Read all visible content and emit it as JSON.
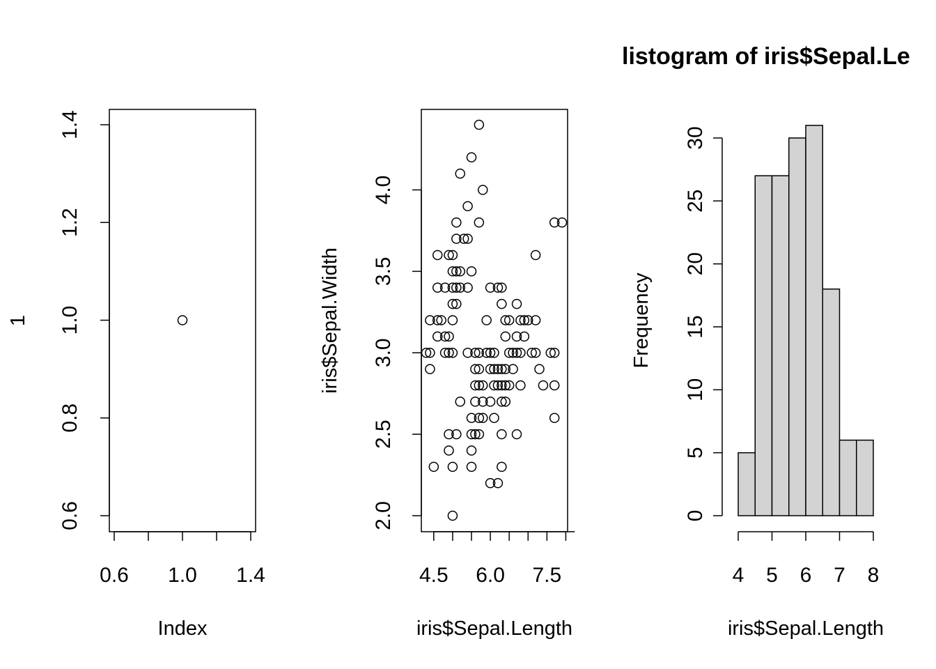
{
  "chart_data": [
    {
      "type": "scatter",
      "title": "",
      "xlabel": "Index",
      "ylabel": "1",
      "xlim": [
        0.6,
        1.4
      ],
      "ylim": [
        0.6,
        1.4
      ],
      "xticks": [
        "0.6",
        "1.0",
        "1.4"
      ],
      "yticks": [
        "0.6",
        "0.8",
        "1.0",
        "1.2",
        "1.4"
      ],
      "points": [
        [
          1.0,
          1.0
        ]
      ],
      "grid": false
    },
    {
      "type": "scatter",
      "title": "",
      "xlabel": "iris$Sepal.Length",
      "ylabel": "iris$Sepal.Width",
      "xlim": [
        4.3,
        7.9
      ],
      "ylim": [
        2.0,
        4.4
      ],
      "xticks": [
        "4.5",
        "6.0",
        "7.5"
      ],
      "yticks": [
        "2.0",
        "2.5",
        "3.0",
        "3.5",
        "4.0"
      ],
      "grid": false,
      "points": [
        [
          4.3,
          3.0
        ],
        [
          4.4,
          3.0
        ],
        [
          4.4,
          2.9
        ],
        [
          4.4,
          3.2
        ],
        [
          4.5,
          2.3
        ],
        [
          4.6,
          3.1
        ],
        [
          4.6,
          3.4
        ],
        [
          4.6,
          3.6
        ],
        [
          4.6,
          3.2
        ],
        [
          4.7,
          3.2
        ],
        [
          4.8,
          3.4
        ],
        [
          4.8,
          3.0
        ],
        [
          4.8,
          3.1
        ],
        [
          4.9,
          3.0
        ],
        [
          4.9,
          3.1
        ],
        [
          4.9,
          3.6
        ],
        [
          4.9,
          2.4
        ],
        [
          4.9,
          2.5
        ],
        [
          5.0,
          3.6
        ],
        [
          5.0,
          3.4
        ],
        [
          5.0,
          3.0
        ],
        [
          5.0,
          3.3
        ],
        [
          5.0,
          3.5
        ],
        [
          5.0,
          3.2
        ],
        [
          5.0,
          2.0
        ],
        [
          5.0,
          2.3
        ],
        [
          5.1,
          3.5
        ],
        [
          5.1,
          3.8
        ],
        [
          5.1,
          3.7
        ],
        [
          5.1,
          3.3
        ],
        [
          5.1,
          3.4
        ],
        [
          5.1,
          2.5
        ],
        [
          5.2,
          3.5
        ],
        [
          5.2,
          3.4
        ],
        [
          5.2,
          4.1
        ],
        [
          5.2,
          2.7
        ],
        [
          5.3,
          3.7
        ],
        [
          5.4,
          3.9
        ],
        [
          5.4,
          3.7
        ],
        [
          5.4,
          3.4
        ],
        [
          5.4,
          3.0
        ],
        [
          5.5,
          4.2
        ],
        [
          5.5,
          3.5
        ],
        [
          5.5,
          2.3
        ],
        [
          5.5,
          2.4
        ],
        [
          5.5,
          2.6
        ],
        [
          5.5,
          2.5
        ],
        [
          5.6,
          2.9
        ],
        [
          5.6,
          3.0
        ],
        [
          5.6,
          2.5
        ],
        [
          5.6,
          2.7
        ],
        [
          5.6,
          2.8
        ],
        [
          5.7,
          4.4
        ],
        [
          5.7,
          3.8
        ],
        [
          5.7,
          2.8
        ],
        [
          5.7,
          2.6
        ],
        [
          5.7,
          2.9
        ],
        [
          5.7,
          2.5
        ],
        [
          5.7,
          3.0
        ],
        [
          5.8,
          4.0
        ],
        [
          5.8,
          2.7
        ],
        [
          5.8,
          2.6
        ],
        [
          5.8,
          2.8
        ],
        [
          5.9,
          3.0
        ],
        [
          5.9,
          3.2
        ],
        [
          6.0,
          2.2
        ],
        [
          6.0,
          2.9
        ],
        [
          6.0,
          2.7
        ],
        [
          6.0,
          3.4
        ],
        [
          6.0,
          3.0
        ],
        [
          6.1,
          2.9
        ],
        [
          6.1,
          2.8
        ],
        [
          6.1,
          2.6
        ],
        [
          6.1,
          3.0
        ],
        [
          6.2,
          2.2
        ],
        [
          6.2,
          2.9
        ],
        [
          6.2,
          2.8
        ],
        [
          6.2,
          3.4
        ],
        [
          6.3,
          3.3
        ],
        [
          6.3,
          2.3
        ],
        [
          6.3,
          2.5
        ],
        [
          6.3,
          2.9
        ],
        [
          6.3,
          2.7
        ],
        [
          6.3,
          2.8
        ],
        [
          6.3,
          3.4
        ],
        [
          6.4,
          3.2
        ],
        [
          6.4,
          2.9
        ],
        [
          6.4,
          2.7
        ],
        [
          6.4,
          2.8
        ],
        [
          6.4,
          3.1
        ],
        [
          6.5,
          2.8
        ],
        [
          6.5,
          3.0
        ],
        [
          6.5,
          3.2
        ],
        [
          6.6,
          2.9
        ],
        [
          6.6,
          3.0
        ],
        [
          6.7,
          3.1
        ],
        [
          6.7,
          3.0
        ],
        [
          6.7,
          2.5
        ],
        [
          6.7,
          3.3
        ],
        [
          6.8,
          2.8
        ],
        [
          6.8,
          3.0
        ],
        [
          6.8,
          3.2
        ],
        [
          6.9,
          3.1
        ],
        [
          6.9,
          3.2
        ],
        [
          7.0,
          3.2
        ],
        [
          7.1,
          3.0
        ],
        [
          7.2,
          3.6
        ],
        [
          7.2,
          3.2
        ],
        [
          7.2,
          3.0
        ],
        [
          7.3,
          2.9
        ],
        [
          7.4,
          2.8
        ],
        [
          7.6,
          3.0
        ],
        [
          7.7,
          3.8
        ],
        [
          7.7,
          2.6
        ],
        [
          7.7,
          2.8
        ],
        [
          7.7,
          3.0
        ],
        [
          7.9,
          3.8
        ]
      ]
    },
    {
      "type": "bar",
      "title": "listogram of iris$Sepal.Le",
      "xlabel": "iris$Sepal.Length",
      "ylabel": "Frequency",
      "xlim": [
        4,
        8
      ],
      "ylim": [
        0,
        31
      ],
      "xticks": [
        "4",
        "5",
        "6",
        "7",
        "8"
      ],
      "yticks": [
        "0",
        "5",
        "10",
        "15",
        "20",
        "25",
        "30"
      ],
      "bin_edges": [
        4.0,
        4.5,
        5.0,
        5.5,
        6.0,
        6.5,
        7.0,
        7.5,
        8.0
      ],
      "values": [
        5,
        27,
        27,
        30,
        31,
        18,
        6,
        6
      ],
      "bar_color": "#d3d3d3",
      "grid": false
    }
  ]
}
